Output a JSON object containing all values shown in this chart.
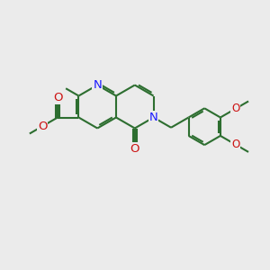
{
  "background_color": "#ebebeb",
  "bond_color": "#2d6e30",
  "N_color": "#1a1aff",
  "O_color": "#cc1111",
  "line_width": 1.5,
  "font_size": 8.5,
  "fig_size": [
    3.0,
    3.0
  ],
  "dpi": 100,
  "xlim": [
    0,
    10
  ],
  "ylim": [
    0,
    10
  ]
}
